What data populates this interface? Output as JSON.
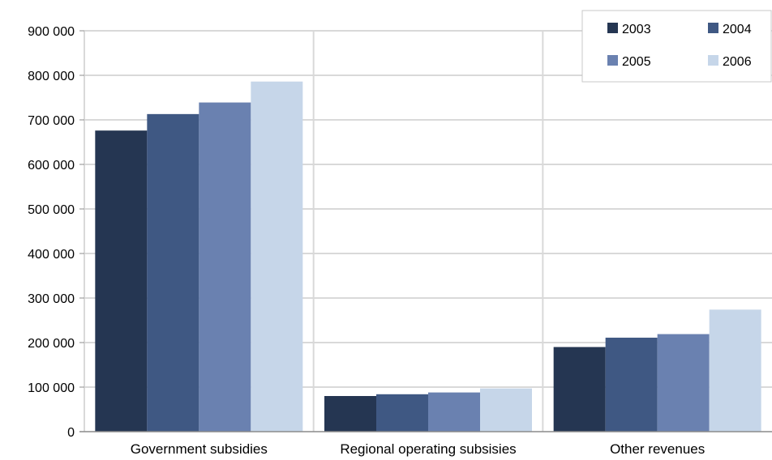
{
  "chart_data": {
    "type": "bar",
    "title": "",
    "xlabel": "",
    "ylabel": "",
    "categories": [
      "Government subsidies",
      "Regional operating subsisies",
      "Other revenues"
    ],
    "series": [
      {
        "name": "2003",
        "values": [
          676000,
          80000,
          190000
        ],
        "color": "#253652"
      },
      {
        "name": "2004",
        "values": [
          713000,
          84000,
          211000
        ],
        "color": "#3f5883"
      },
      {
        "name": "2005",
        "values": [
          739000,
          88000,
          219000
        ],
        "color": "#6a81b0"
      },
      {
        "name": "2006",
        "values": [
          786000,
          97000,
          274000
        ],
        "color": "#c6d6e9"
      }
    ],
    "ylim": [
      0,
      900000
    ],
    "yticks": [
      0,
      100000,
      200000,
      300000,
      400000,
      500000,
      600000,
      700000,
      800000,
      900000
    ],
    "ytick_labels": [
      "0",
      "100 000",
      "200 000",
      "300 000",
      "400 000",
      "500 000",
      "600 000",
      "700 000",
      "800 000",
      "900 000"
    ],
    "grid": true,
    "legend_position": "top-right"
  }
}
